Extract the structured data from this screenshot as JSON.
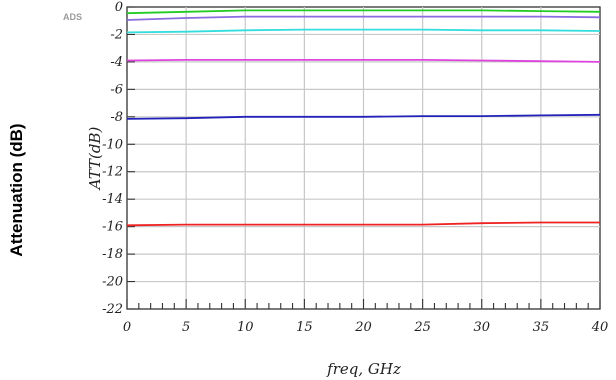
{
  "outer_ylabel": "Attenuation (dB)",
  "badge": "ADS",
  "chart_data": {
    "type": "line",
    "title": "",
    "xlabel": "freq, GHz",
    "ylabel": "ATT(dB)",
    "xlim": [
      0,
      40
    ],
    "ylim": [
      -22,
      0
    ],
    "x_ticks": [
      0,
      5,
      10,
      15,
      20,
      25,
      30,
      35,
      40
    ],
    "y_ticks": [
      0,
      -2,
      -4,
      -6,
      -8,
      -10,
      -12,
      -14,
      -16,
      -18,
      -20,
      -22
    ],
    "grid": true,
    "x": [
      0,
      5,
      10,
      15,
      20,
      25,
      30,
      35,
      40
    ],
    "series": [
      {
        "color": "#22cc22",
        "values": [
          -0.45,
          -0.35,
          -0.25,
          -0.25,
          -0.25,
          -0.25,
          -0.25,
          -0.3,
          -0.35
        ]
      },
      {
        "color": "#8a6be0",
        "values": [
          -0.95,
          -0.8,
          -0.7,
          -0.7,
          -0.7,
          -0.7,
          -0.7,
          -0.7,
          -0.75
        ]
      },
      {
        "color": "#33dddd",
        "values": [
          -1.85,
          -1.8,
          -1.7,
          -1.65,
          -1.65,
          -1.65,
          -1.7,
          -1.7,
          -1.75
        ]
      },
      {
        "color": "#dd44dd",
        "values": [
          -3.9,
          -3.85,
          -3.85,
          -3.85,
          -3.85,
          -3.85,
          -3.9,
          -3.95,
          -4.0
        ]
      },
      {
        "color": "#2222bb",
        "values": [
          -8.15,
          -8.1,
          -8.0,
          -8.0,
          -8.0,
          -7.95,
          -7.95,
          -7.9,
          -7.85
        ]
      },
      {
        "color": "#ee2222",
        "values": [
          -15.9,
          -15.85,
          -15.85,
          -15.85,
          -15.85,
          -15.85,
          -15.75,
          -15.7,
          -15.7
        ]
      }
    ]
  }
}
